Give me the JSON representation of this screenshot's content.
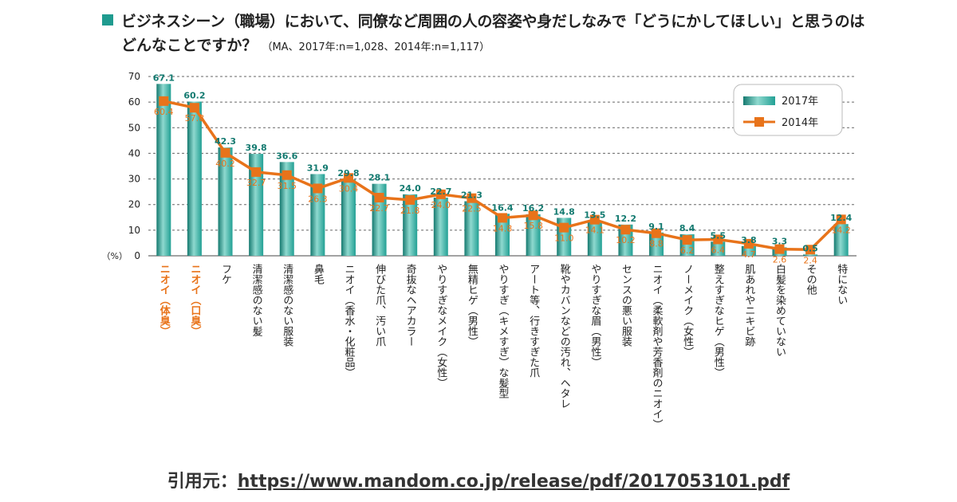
{
  "title": {
    "line1": "ビジネスシーン（職場）において、同僚など周囲の人の容姿や身だしなみで「どうにかしてほしい」と思うのは",
    "line2": "どんなことですか？",
    "note": "（MA、2017年:n=1,028、2014年:n=1,117）"
  },
  "source": {
    "prefix": "引用元：",
    "url": "https://www.mandom.co.jp/release/pdf/2017053101.pdf"
  },
  "colors": {
    "bar": "#22a094",
    "line": "#e8731a",
    "highlight_label": "#e8731a",
    "grid": "#666666"
  },
  "chart_data": {
    "type": "bar",
    "unit_label": "（%）",
    "ylim": [
      0,
      70
    ],
    "yticks": [
      0,
      10,
      20,
      30,
      40,
      50,
      60,
      70
    ],
    "grid": true,
    "legend_placement": "top-right",
    "categories": [
      "ニオイ（体臭）",
      "ニオイ（口臭）",
      "フケ",
      "清潔感のない髪",
      "清潔感のない服装",
      "鼻毛",
      "ニオイ（香水・化粧品）",
      "伸びた爪、汚い爪",
      "奇抜なヘアカラー",
      "やりすぎなメイク（女性）",
      "無精ヒゲ（男性）",
      "やりすぎ（キメすぎ）な髪型",
      "アート等、行きすぎた爪",
      "靴やカバンなどの汚れ、ヘタレ",
      "やりすぎな眉（男性）",
      "センスの悪い服装",
      "ニオイ（柔軟剤や芳香剤のニオイ）",
      "ノーメイク（女性）",
      "整えすぎなヒゲ（男性）",
      "肌あれやニキビ跡",
      "白髪を染めていない",
      "その他",
      "特にない"
    ],
    "highlight_categories": [
      0,
      1
    ],
    "series": [
      {
        "name": "2017年",
        "kind": "bar",
        "values": [
          67.1,
          60.2,
          42.3,
          39.8,
          36.6,
          31.9,
          29.8,
          28.1,
          24.0,
          22.7,
          21.3,
          16.4,
          16.2,
          14.8,
          13.5,
          12.2,
          9.1,
          8.4,
          5.5,
          3.8,
          3.3,
          0.5,
          12.4
        ],
        "labels": [
          "67.1",
          "60.2",
          "42.3",
          "39.8",
          "36.6",
          "31.9",
          "29.8",
          "28.1",
          "24.0",
          "22.7",
          "21.3",
          "16.4",
          "16.2",
          "14.8",
          "13.5",
          "12.2",
          "9.1",
          "8.4",
          "5.5",
          "3.8",
          "3.3",
          "0.5",
          "12.4"
        ]
      },
      {
        "name": "2014年",
        "kind": "line",
        "values": [
          60.4,
          57.8,
          40.2,
          32.7,
          31.5,
          26.3,
          30.4,
          22.7,
          21.8,
          24.0,
          22.5,
          14.8,
          15.8,
          11.0,
          14.1,
          10.2,
          8.8,
          6.2,
          6.4,
          4.7,
          2.6,
          2.4,
          14.2
        ],
        "labels": [
          "60.4",
          "57.8",
          "40.2",
          "32.7",
          "31.5",
          "26.3",
          "30.4",
          "22.7",
          "21.8",
          "24.0",
          "22.5",
          "14.8",
          "15.8",
          "11.0",
          "14.1",
          "10.2",
          "8.8",
          "6.2",
          "6.4",
          "4.7",
          "2.6",
          "2.4",
          "14.2"
        ]
      }
    ]
  }
}
